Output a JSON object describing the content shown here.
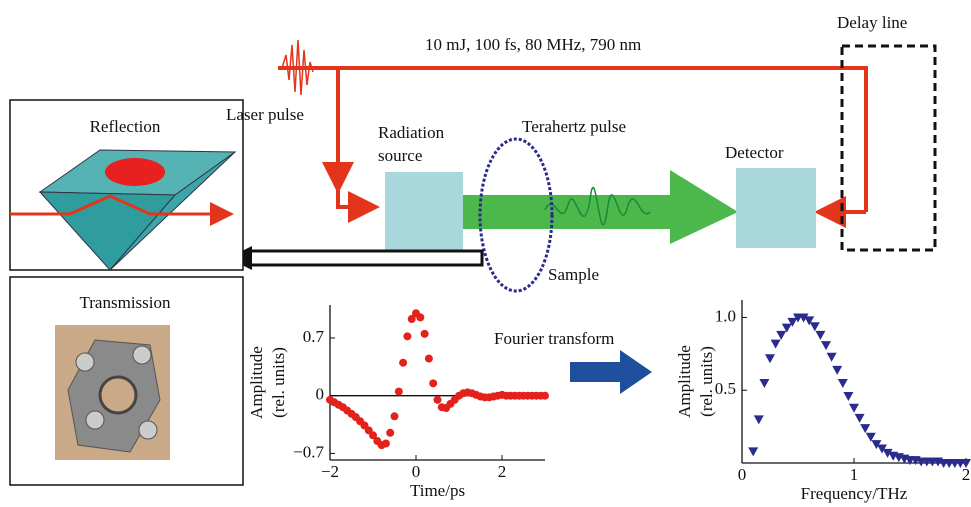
{
  "labels": {
    "beam_params": "10 mJ, 100 fs, 80 MHz, 790 nm",
    "delay_line": "Delay line",
    "laser_pulse": "Laser pulse",
    "reflection": "Reflection",
    "radiation_source": [
      "Radiation",
      "source"
    ],
    "terahertz_pulse": "Terahertz pulse",
    "detector": "Detector",
    "sample": "Sample",
    "transmission": "Transmission",
    "fourier_transform": "Fourier transform"
  },
  "time_plot": {
    "type": "scatter",
    "marker": "circle",
    "color": "#e3221c",
    "zero_line": true,
    "y_label": [
      "Amplitude",
      "(rel. units)"
    ],
    "x_label": "Time/ps",
    "xlim": [
      -2,
      3
    ],
    "ylim": [
      -0.78,
      1.1
    ],
    "xticks": [
      {
        "value": -2,
        "label": "−2"
      },
      0,
      2
    ],
    "yticks": [
      {
        "value": -0.7,
        "label": "−0.7"
      },
      0,
      0.7
    ],
    "x": [
      -2,
      -1.9,
      -1.8,
      -1.7,
      -1.6,
      -1.5,
      -1.4,
      -1.3,
      -1.2,
      -1.1,
      -1,
      -0.9,
      -0.8,
      -0.7,
      -0.6,
      -0.5,
      -0.4,
      -0.3,
      -0.2,
      -0.1,
      0,
      0.1,
      0.2,
      0.3,
      0.4,
      0.5,
      0.6,
      0.7,
      0.8,
      0.9,
      1,
      1.1,
      1.2,
      1.3,
      1.4,
      1.5,
      1.6,
      1.7,
      1.8,
      1.9,
      2,
      2.1,
      2.2,
      2.3,
      2.4,
      2.5,
      2.6,
      2.7,
      2.8,
      2.9,
      3
    ],
    "values": [
      -0.05,
      -0.08,
      -0.11,
      -0.14,
      -0.18,
      -0.22,
      -0.26,
      -0.31,
      -0.36,
      -0.42,
      -0.48,
      -0.55,
      -0.6,
      -0.58,
      -0.45,
      -0.25,
      0.05,
      0.4,
      0.72,
      0.93,
      1,
      0.95,
      0.75,
      0.45,
      0.15,
      -0.05,
      -0.14,
      -0.15,
      -0.1,
      -0.05,
      0,
      0.03,
      0.04,
      0.03,
      0.01,
      -0.01,
      -0.02,
      -0.02,
      -0.01,
      0,
      0.01,
      0,
      0,
      0,
      0,
      0,
      0,
      0,
      0,
      0,
      0
    ]
  },
  "spectrum_plot": {
    "type": "scatter",
    "marker": "triangle",
    "color": "#2b2b8e",
    "zero_line": false,
    "y_label": [
      "Amplitude",
      "(rel. units)"
    ],
    "x_label": "Frequency/THz",
    "xlim": [
      0,
      2
    ],
    "ylim": [
      0,
      1.12
    ],
    "xticks": [
      0,
      1,
      2
    ],
    "yticks": [
      0.5,
      {
        "value": 1,
        "label": "1.0"
      }
    ],
    "x": [
      0.1,
      0.15,
      0.2,
      0.25,
      0.3,
      0.35,
      0.4,
      0.45,
      0.5,
      0.55,
      0.6,
      0.65,
      0.7,
      0.75,
      0.8,
      0.85,
      0.9,
      0.95,
      1,
      1.05,
      1.1,
      1.15,
      1.2,
      1.25,
      1.3,
      1.35,
      1.4,
      1.45,
      1.5,
      1.55,
      1.6,
      1.65,
      1.7,
      1.75,
      1.8,
      1.85,
      1.9,
      1.95,
      2
    ],
    "values": [
      0.08,
      0.3,
      0.55,
      0.72,
      0.82,
      0.88,
      0.93,
      0.97,
      1,
      1,
      0.98,
      0.94,
      0.88,
      0.81,
      0.73,
      0.64,
      0.55,
      0.46,
      0.38,
      0.31,
      0.24,
      0.18,
      0.13,
      0.1,
      0.07,
      0.05,
      0.04,
      0.03,
      0.02,
      0.02,
      0.01,
      0.01,
      0.01,
      0.01,
      0,
      0,
      0,
      0,
      0
    ]
  }
}
